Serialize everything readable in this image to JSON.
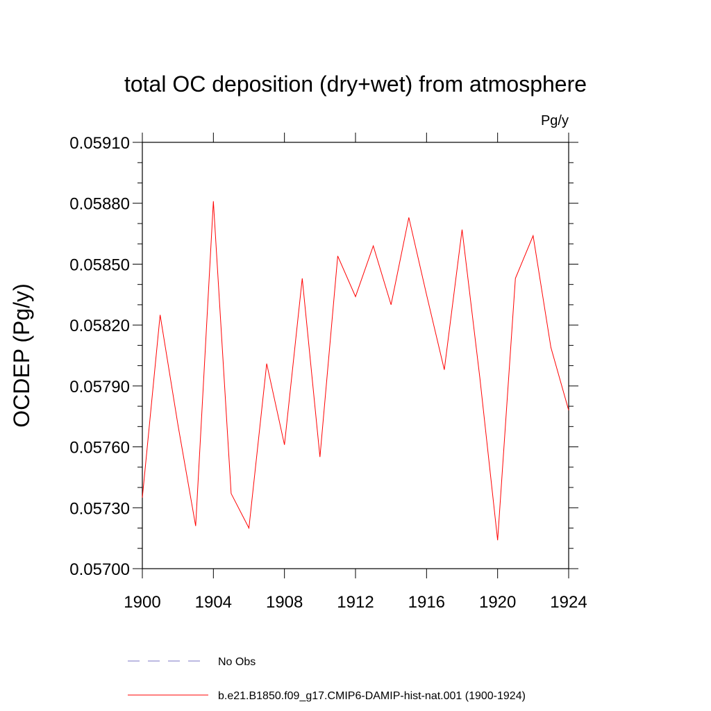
{
  "chart_data": {
    "type": "line",
    "title": "total OC deposition (dry+wet) from atmosphere",
    "units_label": "Pg/y",
    "xlabel": "",
    "ylabel": "OCDEP  (Pg/y)",
    "xlim": [
      1900,
      1924
    ],
    "ylim": [
      0.057,
      0.0591
    ],
    "x_ticks": [
      1900,
      1904,
      1908,
      1912,
      1916,
      1920,
      1924
    ],
    "x_tick_labels": [
      "1900",
      "1904",
      "1908",
      "1912",
      "1916",
      "1920",
      "1924"
    ],
    "y_ticks": [
      0.057,
      0.0573,
      0.0576,
      0.0579,
      0.0582,
      0.0585,
      0.0588,
      0.0591
    ],
    "y_tick_labels": [
      "0.05700",
      "0.05730",
      "0.05760",
      "0.05790",
      "0.05820",
      "0.05850",
      "0.05880",
      "0.05910"
    ],
    "grid": false,
    "legend_position": "bottom",
    "series": [
      {
        "name": "b.e21.B1850.f09_g17.CMIP6-DAMIP-hist-nat.001 (1900-1924)",
        "color": "#ff0000",
        "style": "solid",
        "x": [
          1900,
          1901,
          1902,
          1903,
          1904,
          1905,
          1906,
          1907,
          1908,
          1909,
          1910,
          1911,
          1912,
          1913,
          1914,
          1915,
          1916,
          1917,
          1918,
          1919,
          1920,
          1921,
          1922,
          1923,
          1924
        ],
        "values": [
          0.05735,
          0.05825,
          0.05771,
          0.05721,
          0.05881,
          0.05737,
          0.0572,
          0.05801,
          0.05761,
          0.05843,
          0.05755,
          0.05854,
          0.05834,
          0.05859,
          0.0583,
          0.05873,
          0.05835,
          0.05798,
          0.05867,
          0.05794,
          0.05714,
          0.05843,
          0.05864,
          0.05809,
          0.05778
        ]
      }
    ],
    "legend": [
      {
        "label": "No Obs",
        "color": "#7a73c4",
        "style": "dashed"
      },
      {
        "label": "b.e21.B1850.f09_g17.CMIP6-DAMIP-hist-nat.001 (1900-1924)",
        "color": "#ff0000",
        "style": "solid"
      }
    ]
  }
}
